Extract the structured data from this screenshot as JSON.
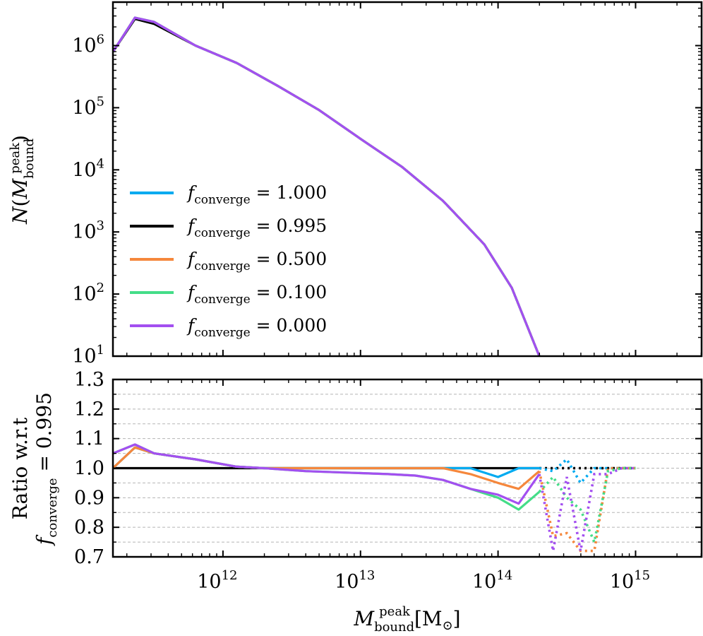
{
  "chart_data": [
    {
      "type": "line",
      "panel": "top",
      "ylabel": "N(M_bound^peak)",
      "yscale": "log",
      "xscale": "log",
      "xlim_log10": [
        11.2,
        15.48
      ],
      "ylim_log10": [
        1.0,
        6.7
      ],
      "ytick_labels": [
        "10",
        "10",
        "10",
        "10",
        "10",
        "10"
      ],
      "ytick_exponents": [
        "1",
        "2",
        "3",
        "4",
        "5",
        "6"
      ],
      "x_log10": [
        11.2,
        11.36,
        11.5,
        11.8,
        12.1,
        12.4,
        12.7,
        13.0,
        13.3,
        13.6,
        13.9,
        14.1,
        14.3
      ],
      "solid_until_log10": 14.3,
      "series": [
        {
          "name": "1.000",
          "color": "#00aaf0",
          "log10_values": [
            5.9,
            6.45,
            6.38,
            6.0,
            5.72,
            5.35,
            4.96,
            4.5,
            4.05,
            3.5,
            2.8,
            2.1,
            1.0
          ]
        },
        {
          "name": "0.995",
          "color": "#000000",
          "log10_values": [
            5.9,
            6.43,
            6.35,
            6.0,
            5.72,
            5.35,
            4.96,
            4.5,
            4.05,
            3.5,
            2.8,
            2.1,
            1.0
          ]
        },
        {
          "name": "0.500",
          "color": "#f5873c",
          "log10_values": [
            5.9,
            6.45,
            6.38,
            6.0,
            5.72,
            5.35,
            4.96,
            4.5,
            4.05,
            3.5,
            2.8,
            2.1,
            1.0
          ]
        },
        {
          "name": "0.100",
          "color": "#44dd88",
          "log10_values": [
            5.9,
            6.45,
            6.38,
            6.0,
            5.72,
            5.35,
            4.96,
            4.5,
            4.05,
            3.5,
            2.8,
            2.1,
            1.0
          ]
        },
        {
          "name": "0.000",
          "color": "#a34ff0",
          "log10_values": [
            5.9,
            6.45,
            6.38,
            6.0,
            5.72,
            5.35,
            4.96,
            4.5,
            4.05,
            3.5,
            2.8,
            2.1,
            1.0
          ]
        }
      ],
      "legend_position": "lower-left",
      "legend_prefix": "f",
      "legend_sub": "converge",
      "legend_eq": " = "
    },
    {
      "type": "line",
      "panel": "bottom",
      "xlabel": "M_bound^peak [M_sun]",
      "ylabel_line1": "Ratio w.r.t",
      "ylabel_line2_prefix": "f",
      "ylabel_line2_sub": "converge",
      "ylabel_line2_value": " = 0.995",
      "xscale": "log",
      "xlim_log10": [
        11.2,
        15.48
      ],
      "ylim": [
        0.7,
        1.3
      ],
      "ytick_labels": [
        "0.7",
        "0.8",
        "0.9",
        "1.0",
        "1.1",
        "1.2",
        "1.3"
      ],
      "xtick_labels": [
        "10",
        "10",
        "10",
        "10"
      ],
      "xtick_exponents": [
        "12",
        "13",
        "14",
        "15"
      ],
      "xtick_log10": [
        12,
        13,
        14,
        15
      ],
      "grid": true,
      "x_log10": [
        11.2,
        11.36,
        11.5,
        11.8,
        12.1,
        12.3,
        12.6,
        12.9,
        13.2,
        13.4,
        13.6,
        13.8,
        14.0,
        14.15,
        14.3,
        14.4,
        14.5,
        14.6,
        14.7,
        14.8,
        14.9,
        15.0
      ],
      "solid_until_log10": 14.3,
      "series": [
        {
          "name": "0.995",
          "color": "#000000",
          "values": [
            1.0,
            1.0,
            1.0,
            1.0,
            1.0,
            1.0,
            1.0,
            1.0,
            1.0,
            1.0,
            1.0,
            1.0,
            1.0,
            1.0,
            1.0,
            1.0,
            1.0,
            1.0,
            1.0,
            1.0,
            1.0,
            1.0
          ]
        },
        {
          "name": "1.000",
          "color": "#00aaf0",
          "values": [
            1.0,
            1.07,
            1.05,
            1.03,
            1.005,
            1.0,
            1.0,
            1.0,
            1.0,
            1.0,
            1.0,
            1.0,
            0.97,
            1.0,
            1.0,
            0.99,
            1.03,
            0.95,
            1.0,
            1.0,
            1.0,
            1.0
          ]
        },
        {
          "name": "0.500",
          "color": "#f5873c",
          "values": [
            1.0,
            1.07,
            1.05,
            1.03,
            1.005,
            1.0,
            1.0,
            1.0,
            1.0,
            1.0,
            1.0,
            0.98,
            0.95,
            0.93,
            0.99,
            0.77,
            0.78,
            0.72,
            0.72,
            1.0,
            1.0,
            1.0
          ]
        },
        {
          "name": "0.100",
          "color": "#44dd88",
          "values": [
            1.05,
            1.08,
            1.05,
            1.03,
            1.005,
            1.0,
            0.99,
            0.985,
            0.98,
            0.975,
            0.96,
            0.93,
            0.9,
            0.86,
            0.92,
            0.97,
            0.9,
            0.86,
            0.75,
            0.99,
            1.0,
            1.0
          ]
        },
        {
          "name": "0.000",
          "color": "#a34ff0",
          "values": [
            1.05,
            1.08,
            1.05,
            1.03,
            1.005,
            1.0,
            0.99,
            0.985,
            0.98,
            0.975,
            0.96,
            0.93,
            0.91,
            0.88,
            0.98,
            0.72,
            0.97,
            0.72,
            0.98,
            0.98,
            1.0,
            1.0
          ]
        }
      ]
    }
  ]
}
